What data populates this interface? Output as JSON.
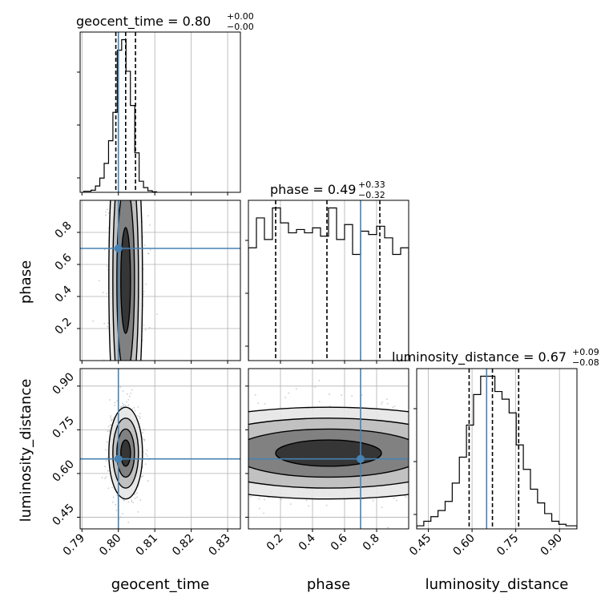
{
  "chart_data": {
    "type": "corner",
    "parameters": [
      "geocent_time",
      "phase",
      "luminosity_distance"
    ],
    "truths": {
      "geocent_time": 0.8,
      "phase": 0.7,
      "luminosity_distance": 0.65
    },
    "axis_ranges": {
      "geocent_time": [
        0.7895,
        0.8335
      ],
      "phase": [
        0.0,
        1.0
      ],
      "luminosity_distance": [
        0.41,
        0.96
      ]
    },
    "ticks": {
      "geocent_time": [
        0.79,
        0.8,
        0.81,
        0.82,
        0.83
      ],
      "phase": [
        0.2,
        0.4,
        0.6,
        0.8
      ],
      "luminosity_distance": [
        0.45,
        0.6,
        0.75,
        0.9
      ]
    },
    "tick_labels": {
      "geocent_time": [
        "0.79",
        "0.80",
        "0.81",
        "0.82",
        "0.83"
      ],
      "phase": [
        "0.2",
        "0.4",
        "0.6",
        "0.8"
      ],
      "luminosity_distance": [
        "0.45",
        "0.60",
        "0.75",
        "0.90"
      ]
    },
    "titles": [
      {
        "param": "geocent_time",
        "text": "geocent_time = 0.80",
        "sup": "+0.00",
        "sub": "−0.00"
      },
      {
        "param": "phase",
        "text": "phase = 0.49",
        "sup": "+0.33",
        "sub": "−0.32"
      },
      {
        "param": "luminosity_distance",
        "text": "luminosity_distance = 0.67",
        "sup": "+0.09",
        "sub": "−0.08"
      }
    ],
    "quantiles": {
      "geocent_time": [
        0.7993,
        0.802,
        0.8047
      ],
      "phase": [
        0.17,
        0.49,
        0.82
      ],
      "luminosity_distance": [
        0.59,
        0.67,
        0.76
      ]
    },
    "histograms": {
      "geocent_time": {
        "edges": [
          0.7905,
          0.7925,
          0.7937,
          0.7949,
          0.7961,
          0.7973,
          0.7985,
          0.7997,
          0.8009,
          0.8021,
          0.8033,
          0.8045,
          0.8057,
          0.8069,
          0.8081,
          0.8093,
          0.8105
        ],
        "counts": [
          2,
          4,
          12,
          27,
          55,
          98,
          152,
          270,
          290,
          230,
          165,
          75,
          21,
          9,
          3,
          1
        ]
      },
      "phase": {
        "edges": [
          0.0,
          0.05,
          0.1,
          0.15,
          0.2,
          0.25,
          0.3,
          0.35,
          0.4,
          0.45,
          0.5,
          0.55,
          0.6,
          0.65,
          0.7,
          0.75,
          0.8,
          0.85,
          0.9,
          0.95,
          1.0
        ],
        "counts": [
          68,
          86,
          73,
          92,
          83,
          77,
          79,
          77,
          80,
          75,
          92,
          73,
          82,
          64,
          78,
          76,
          81,
          74,
          64,
          68
        ]
      },
      "luminosity_distance": {
        "edges": [
          0.41,
          0.4344,
          0.4588,
          0.4832,
          0.5076,
          0.532,
          0.5564,
          0.5808,
          0.6052,
          0.6296,
          0.654,
          0.6784,
          0.7028,
          0.7272,
          0.7516,
          0.776,
          0.8004,
          0.8248,
          0.8492,
          0.8736,
          0.898,
          0.9224,
          0.9468,
          0.96
        ],
        "counts": [
          2,
          5,
          8,
          12,
          18,
          30,
          47,
          68,
          88,
          100,
          100,
          90,
          85,
          76,
          55,
          39,
          26,
          17,
          10,
          5,
          3,
          2,
          2
        ]
      }
    },
    "colors": {
      "truth": "#4682b4",
      "ink": "#000000",
      "grid": "#b0b0b0"
    },
    "grid": true,
    "xlabels": [
      "geocent_time",
      "phase",
      "luminosity_distance"
    ],
    "ylabels": [
      "phase",
      "luminosity_distance"
    ]
  }
}
